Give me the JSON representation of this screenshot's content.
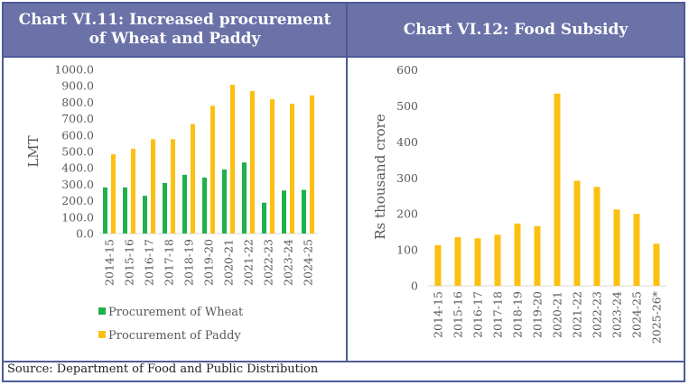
{
  "header": {
    "left_title_line1": "Chart VI.11: Increased procurement",
    "left_title_line2": "of Wheat and Paddy",
    "right_title": "Chart VI.12: Food Subsidy"
  },
  "source": "Source: Department of Food and Public Distribution",
  "colors": {
    "header_bg": "#6b72a8",
    "border": "#4f5b98",
    "wheat": "#1fb14c",
    "paddy": "#fcc012"
  },
  "chart_data": [
    {
      "type": "bar",
      "title": "Chart VI.11: Increased procurement of Wheat and Paddy",
      "xlabel": "",
      "ylabel": "LMT",
      "ylim": [
        0,
        1000
      ],
      "yticks": [
        "0.0",
        "100.0",
        "200.0",
        "300.0",
        "400.0",
        "500.0",
        "600.0",
        "700.0",
        "800.0",
        "900.0",
        "1000.0"
      ],
      "categories": [
        "2014-15",
        "2015-16",
        "2016-17",
        "2017-18",
        "2018-19",
        "2019-20",
        "2020-21",
        "2021-22",
        "2022-23",
        "2023-24",
        "2024-25"
      ],
      "series": [
        {
          "name": "Procurement of Wheat",
          "color": "#1fb14c",
          "values": [
            281,
            281,
            230,
            308,
            358,
            341,
            390,
            433,
            188,
            262,
            266
          ]
        },
        {
          "name": "Procurement of Paddy",
          "color": "#fcc012",
          "values": [
            483,
            516,
            575,
            575,
            667,
            778,
            907,
            868,
            819,
            791,
            842
          ]
        }
      ],
      "legend": "bottom",
      "grid": false
    },
    {
      "type": "bar",
      "title": "Chart VI.12: Food Subsidy",
      "xlabel": "",
      "ylabel": "Rs thousand crore",
      "ylim": [
        0,
        600
      ],
      "yticks": [
        "0",
        "100",
        "200",
        "300",
        "400",
        "500",
        "600"
      ],
      "categories": [
        "2014-15",
        "2015-16",
        "2016-17",
        "2017-18",
        "2018-19",
        "2019-20",
        "2020-21",
        "2021-22",
        "2022-23",
        "2023-24",
        "2024-25",
        "2025-26*"
      ],
      "series": [
        {
          "name": "Food Subsidy",
          "color": "#fcc012",
          "values": [
            113,
            135,
            132,
            142,
            173,
            166,
            534,
            292,
            275,
            212,
            200,
            117
          ]
        }
      ],
      "legend": "none",
      "grid": false
    }
  ]
}
